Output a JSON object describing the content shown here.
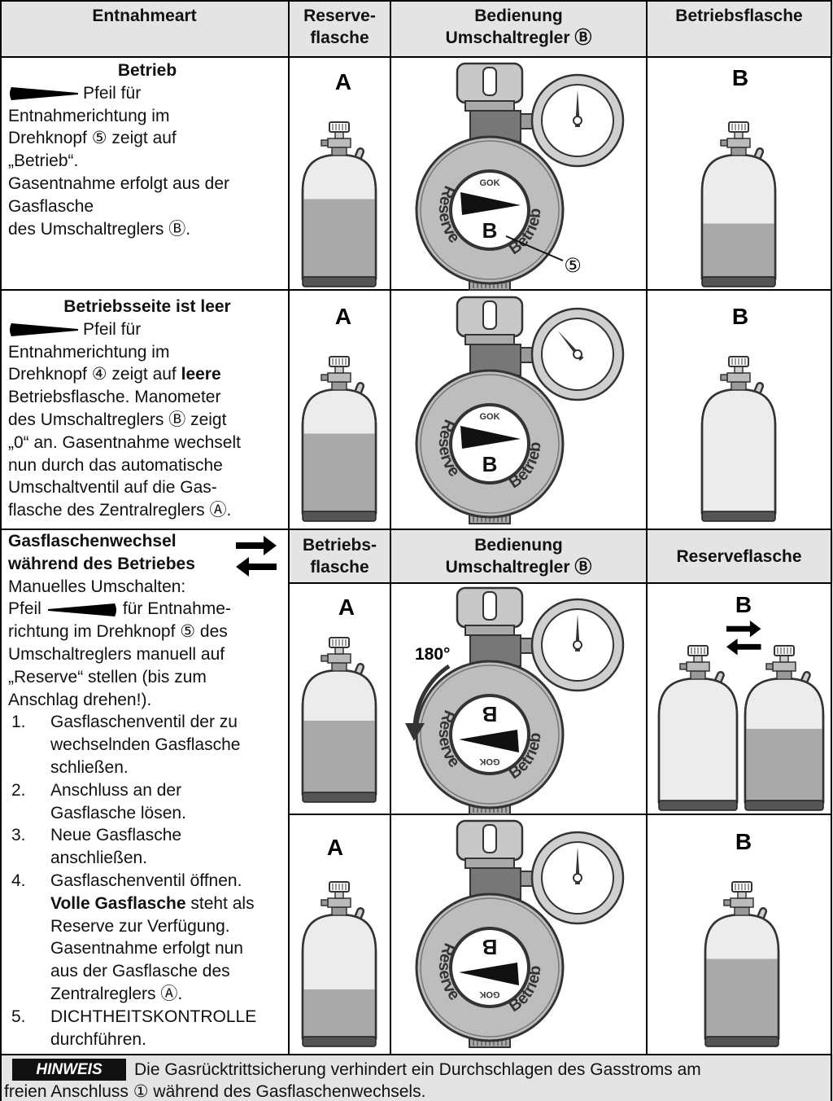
{
  "header": {
    "columns": [
      [
        "Entnahmeart"
      ],
      [
        "Reserve-",
        "flasche"
      ],
      [
        "Bedienung",
        "Umschaltregler Ⓑ"
      ],
      [
        "Betriebsflasche"
      ]
    ]
  },
  "subheader": {
    "columns": [
      [
        "Betriebs-",
        "flasche"
      ],
      [
        "Bedienung",
        "Umschaltregler Ⓑ"
      ],
      [
        "Reserveflasche"
      ]
    ]
  },
  "descriptions": [
    {
      "title": [
        "Betrieb"
      ],
      "lines": [
        "Pfeil für",
        "Entnahmerichtung im",
        "Drehknopf ⑤ zeigt auf",
        "„Betrieb“.",
        "Gasentnahme erfolgt aus der",
        "Gasflasche",
        "des Umschaltreglers Ⓑ."
      ]
    },
    {
      "title": [
        "Betriebsseite ist leer"
      ],
      "lines": [
        "Pfeil für",
        "Entnahmerichtung im",
        [
          "Drehknopf ④ zeigt auf ",
          {
            "text": "leere",
            "bold": true
          }
        ],
        "Betriebsflasche. Manometer",
        "des Umschaltreglers Ⓑ zeigt",
        "„0“ an. Gasentnahme wechselt",
        "nun durch das automatische",
        "Umschaltventil auf die Gas-",
        "flasche des Zentralreglers Ⓐ."
      ]
    },
    {
      "title": [
        "Gasflaschenwechsel",
        "während des Betriebes"
      ],
      "lines": [
        "Manuelles Umschalten:",
        [
          "Pfeil",
          "für Entnahme-"
        ],
        "richtung im Drehknopf ⑤ des",
        "Umschaltreglers manuell auf",
        "„Reserve“ stellen (bis zum",
        "Anschlag drehen!)."
      ],
      "steps": [
        {
          "number": "1.",
          "lines": [
            "Gasflaschenventil der zu",
            "wechselnden Gasflasche",
            "schließen."
          ]
        },
        {
          "number": "2.",
          "lines": [
            "Anschluss an der",
            "Gasflasche lösen."
          ]
        },
        {
          "number": "3.",
          "lines": [
            "Neue Gasflasche",
            "anschließen."
          ]
        },
        {
          "number": "4.",
          "lines": [
            "Gasflaschenventil öffnen.",
            [
              {
                "text": "Volle Gasflasche",
                "bold": true
              },
              " steht als"
            ],
            "Reserve zur Verfügung.",
            "Gasentnahme erfolgt nun",
            "aus der Gasflasche des",
            "Zentralreglers Ⓐ."
          ]
        },
        {
          "number": "5.",
          "lines": [
            "DICHTHEITSKONTROLLE",
            "durchführen."
          ]
        }
      ]
    }
  ],
  "illustrations": [
    {
      "bottle_a": "A",
      "bottle_b": "B",
      "regulator": {
        "left": "Reserve",
        "right": "Betrieb",
        "brand": "GOK",
        "letter": "B",
        "callout": "⑤"
      }
    },
    {
      "bottle_a": "A",
      "bottle_b": "B",
      "regulator": {
        "left": "Reserve",
        "right": "Betrieb",
        "brand": "GOK",
        "letter": "B"
      }
    },
    {
      "bottle_a": "A",
      "bottle_b": "B",
      "regulator": {
        "left": "Reserve",
        "right": "Betrieb",
        "brand": "GOK",
        "letter": "B",
        "rotation": "180°"
      }
    },
    {
      "bottle_a": "A",
      "bottle_b": "B",
      "regulator": {
        "left": "Reserve",
        "right": "Betrieb",
        "brand": "GOK",
        "letter": "B"
      }
    }
  ],
  "footer": {
    "badge": "HINWEIS",
    "lines": [
      "Die Gasrücktrittsicherung verhindert ein Durchschlagen des Gasstroms am",
      "freien Anschluss ① während des Gasflaschenwechsels."
    ]
  }
}
